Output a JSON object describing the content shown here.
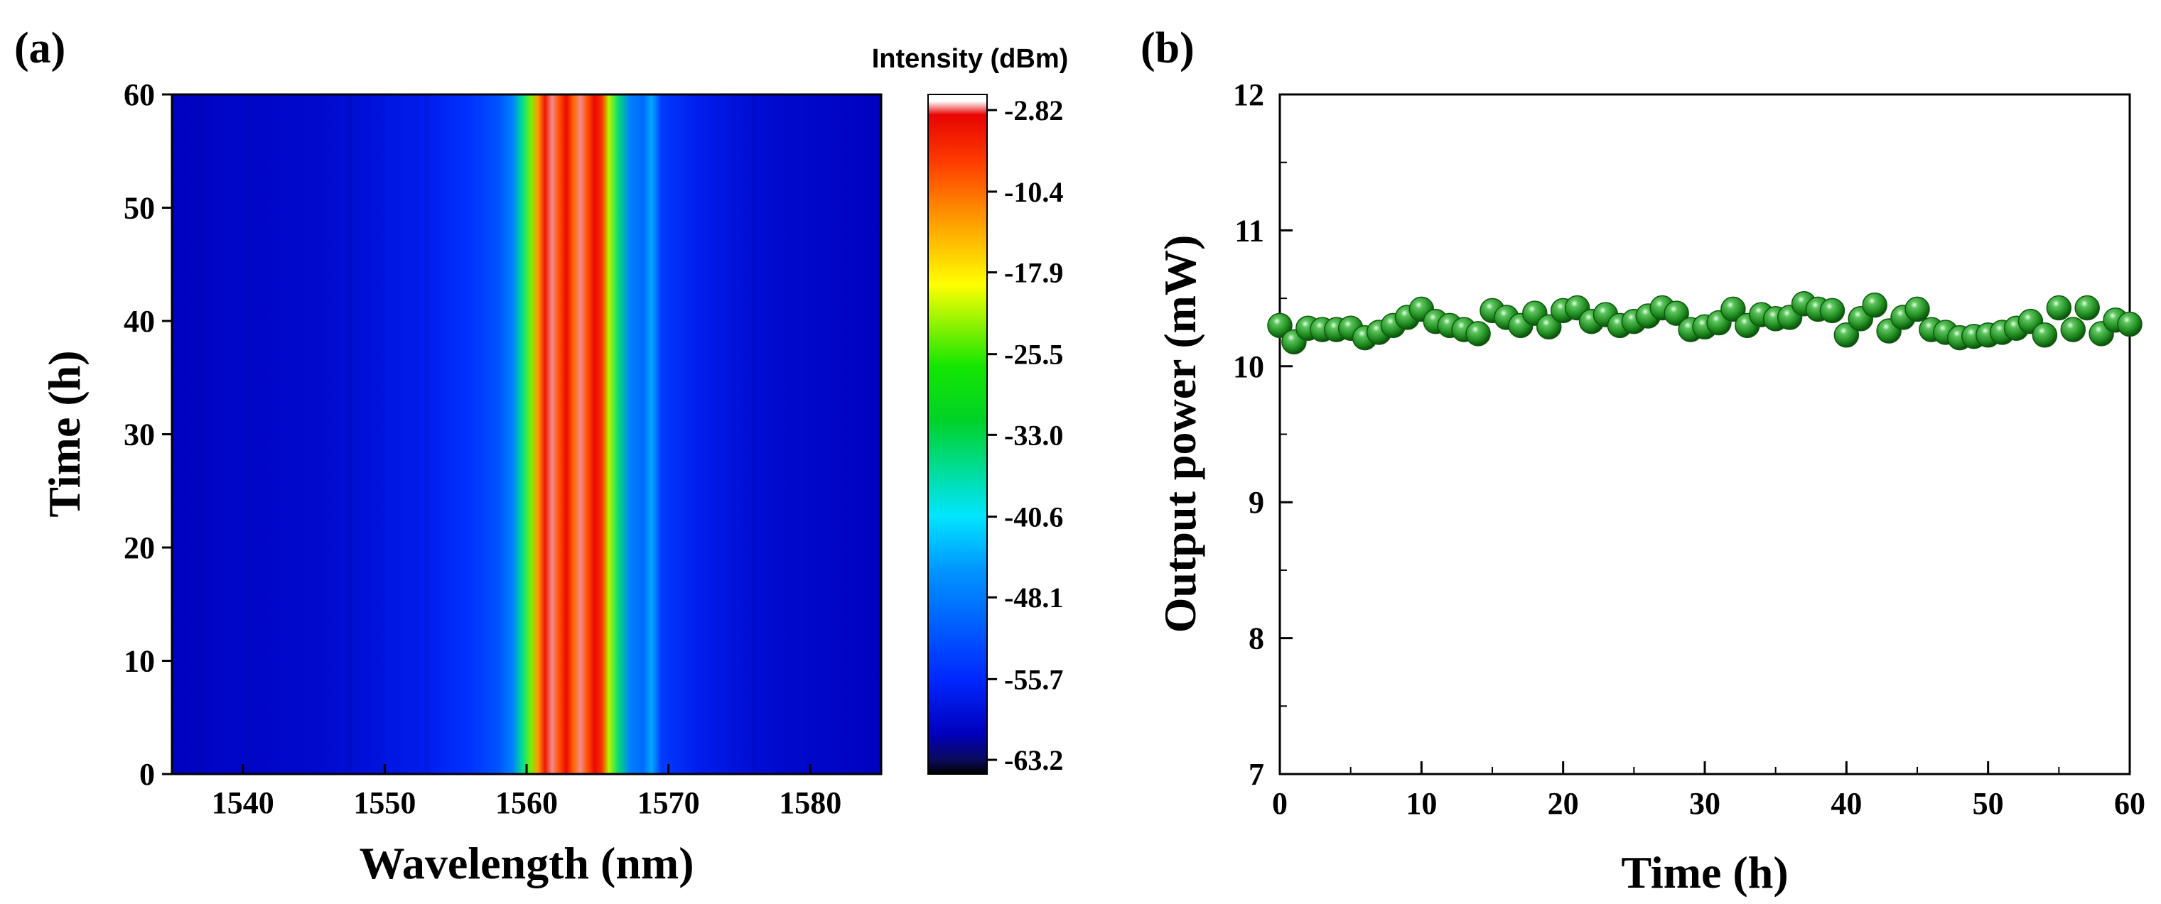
{
  "figure": {
    "panel_a_label": "(a)",
    "panel_b_label": "(b)"
  },
  "chart_data": [
    {
      "type": "heatmap",
      "panel": "(a)",
      "xlabel": "Wavelength (nm)",
      "ylabel": "Time (h)",
      "xlim": [
        1535,
        1585
      ],
      "ylim": [
        0,
        60
      ],
      "xticks": [
        1540,
        1550,
        1560,
        1570,
        1580
      ],
      "yticks": [
        0,
        10,
        20,
        30,
        40,
        50,
        60
      ],
      "colorbar": {
        "title": "Intensity (dBm)",
        "range": [
          -63.2,
          -2.82
        ],
        "ticks": [
          -2.82,
          -10.4,
          -17.9,
          -25.5,
          -33.0,
          -40.6,
          -48.1,
          -55.7,
          -63.2
        ],
        "tick_labels": [
          "-2.82",
          "-10.4",
          "-17.9",
          "-25.5",
          "-33.0",
          "-40.6",
          "-48.1",
          "-55.7",
          "-63.2"
        ]
      },
      "spectrum_profile": [
        {
          "wavelength": 1535,
          "intensity": -59.5
        },
        {
          "wavelength": 1538,
          "intensity": -59.0
        },
        {
          "wavelength": 1541,
          "intensity": -58.8
        },
        {
          "wavelength": 1545,
          "intensity": -58.5
        },
        {
          "wavelength": 1549,
          "intensity": -57.5
        },
        {
          "wavelength": 1553,
          "intensity": -56.0
        },
        {
          "wavelength": 1556,
          "intensity": -54.0
        },
        {
          "wavelength": 1558,
          "intensity": -51.0
        },
        {
          "wavelength": 1559,
          "intensity": -47.0
        },
        {
          "wavelength": 1559.7,
          "intensity": -36.0
        },
        {
          "wavelength": 1560.3,
          "intensity": -24.0
        },
        {
          "wavelength": 1560.8,
          "intensity": -14.0
        },
        {
          "wavelength": 1561.3,
          "intensity": -6.0
        },
        {
          "wavelength": 1561.8,
          "intensity": -4.0
        },
        {
          "wavelength": 1562.3,
          "intensity": -10.0
        },
        {
          "wavelength": 1562.8,
          "intensity": -5.0
        },
        {
          "wavelength": 1563.3,
          "intensity": -11.0
        },
        {
          "wavelength": 1563.8,
          "intensity": -4.0
        },
        {
          "wavelength": 1564.3,
          "intensity": -10.0
        },
        {
          "wavelength": 1564.8,
          "intensity": -5.0
        },
        {
          "wavelength": 1565.3,
          "intensity": -8.0
        },
        {
          "wavelength": 1565.8,
          "intensity": -22.0
        },
        {
          "wavelength": 1566.5,
          "intensity": -35.0
        },
        {
          "wavelength": 1567.3,
          "intensity": -47.0
        },
        {
          "wavelength": 1568.2,
          "intensity": -49.0
        },
        {
          "wavelength": 1568.8,
          "intensity": -44.0
        },
        {
          "wavelength": 1569.5,
          "intensity": -53.0
        },
        {
          "wavelength": 1572,
          "intensity": -56.0
        },
        {
          "wavelength": 1575,
          "intensity": -57.5
        },
        {
          "wavelength": 1578,
          "intensity": -58.5
        },
        {
          "wavelength": 1582,
          "intensity": -59.0
        },
        {
          "wavelength": 1585,
          "intensity": -59.5
        }
      ]
    },
    {
      "type": "scatter",
      "panel": "(b)",
      "xlabel": "Time (h)",
      "ylabel": "Output power (mW)",
      "xlim": [
        0,
        60
      ],
      "ylim": [
        7,
        12
      ],
      "xticks": [
        0,
        10,
        20,
        30,
        40,
        50,
        60
      ],
      "yticks": [
        7,
        8,
        9,
        10,
        11,
        12
      ],
      "marker_color": "#1e8a1e",
      "series": [
        {
          "name": "Output power",
          "x": [
            0,
            1,
            2,
            3,
            4,
            5,
            6,
            7,
            8,
            9,
            10,
            11,
            12,
            13,
            14,
            15,
            16,
            17,
            18,
            19,
            20,
            21,
            22,
            23,
            24,
            25,
            26,
            27,
            28,
            29,
            30,
            31,
            32,
            33,
            34,
            35,
            36,
            37,
            38,
            39,
            40,
            41,
            42,
            43,
            44,
            45,
            46,
            47,
            48,
            49,
            50,
            51,
            52,
            53,
            54,
            55,
            56,
            57,
            58,
            59,
            60
          ],
          "y": [
            10.3,
            10.18,
            10.28,
            10.27,
            10.27,
            10.28,
            10.21,
            10.25,
            10.3,
            10.36,
            10.42,
            10.33,
            10.3,
            10.27,
            10.24,
            10.41,
            10.36,
            10.3,
            10.39,
            10.29,
            10.41,
            10.43,
            10.33,
            10.38,
            10.3,
            10.33,
            10.37,
            10.43,
            10.39,
            10.27,
            10.29,
            10.32,
            10.42,
            10.3,
            10.38,
            10.35,
            10.36,
            10.46,
            10.42,
            10.41,
            10.23,
            10.35,
            10.45,
            10.26,
            10.36,
            10.42,
            10.27,
            10.25,
            10.21,
            10.22,
            10.23,
            10.25,
            10.28,
            10.33,
            10.23,
            10.43,
            10.27,
            10.43,
            10.24,
            10.34,
            10.31
          ]
        }
      ]
    }
  ]
}
